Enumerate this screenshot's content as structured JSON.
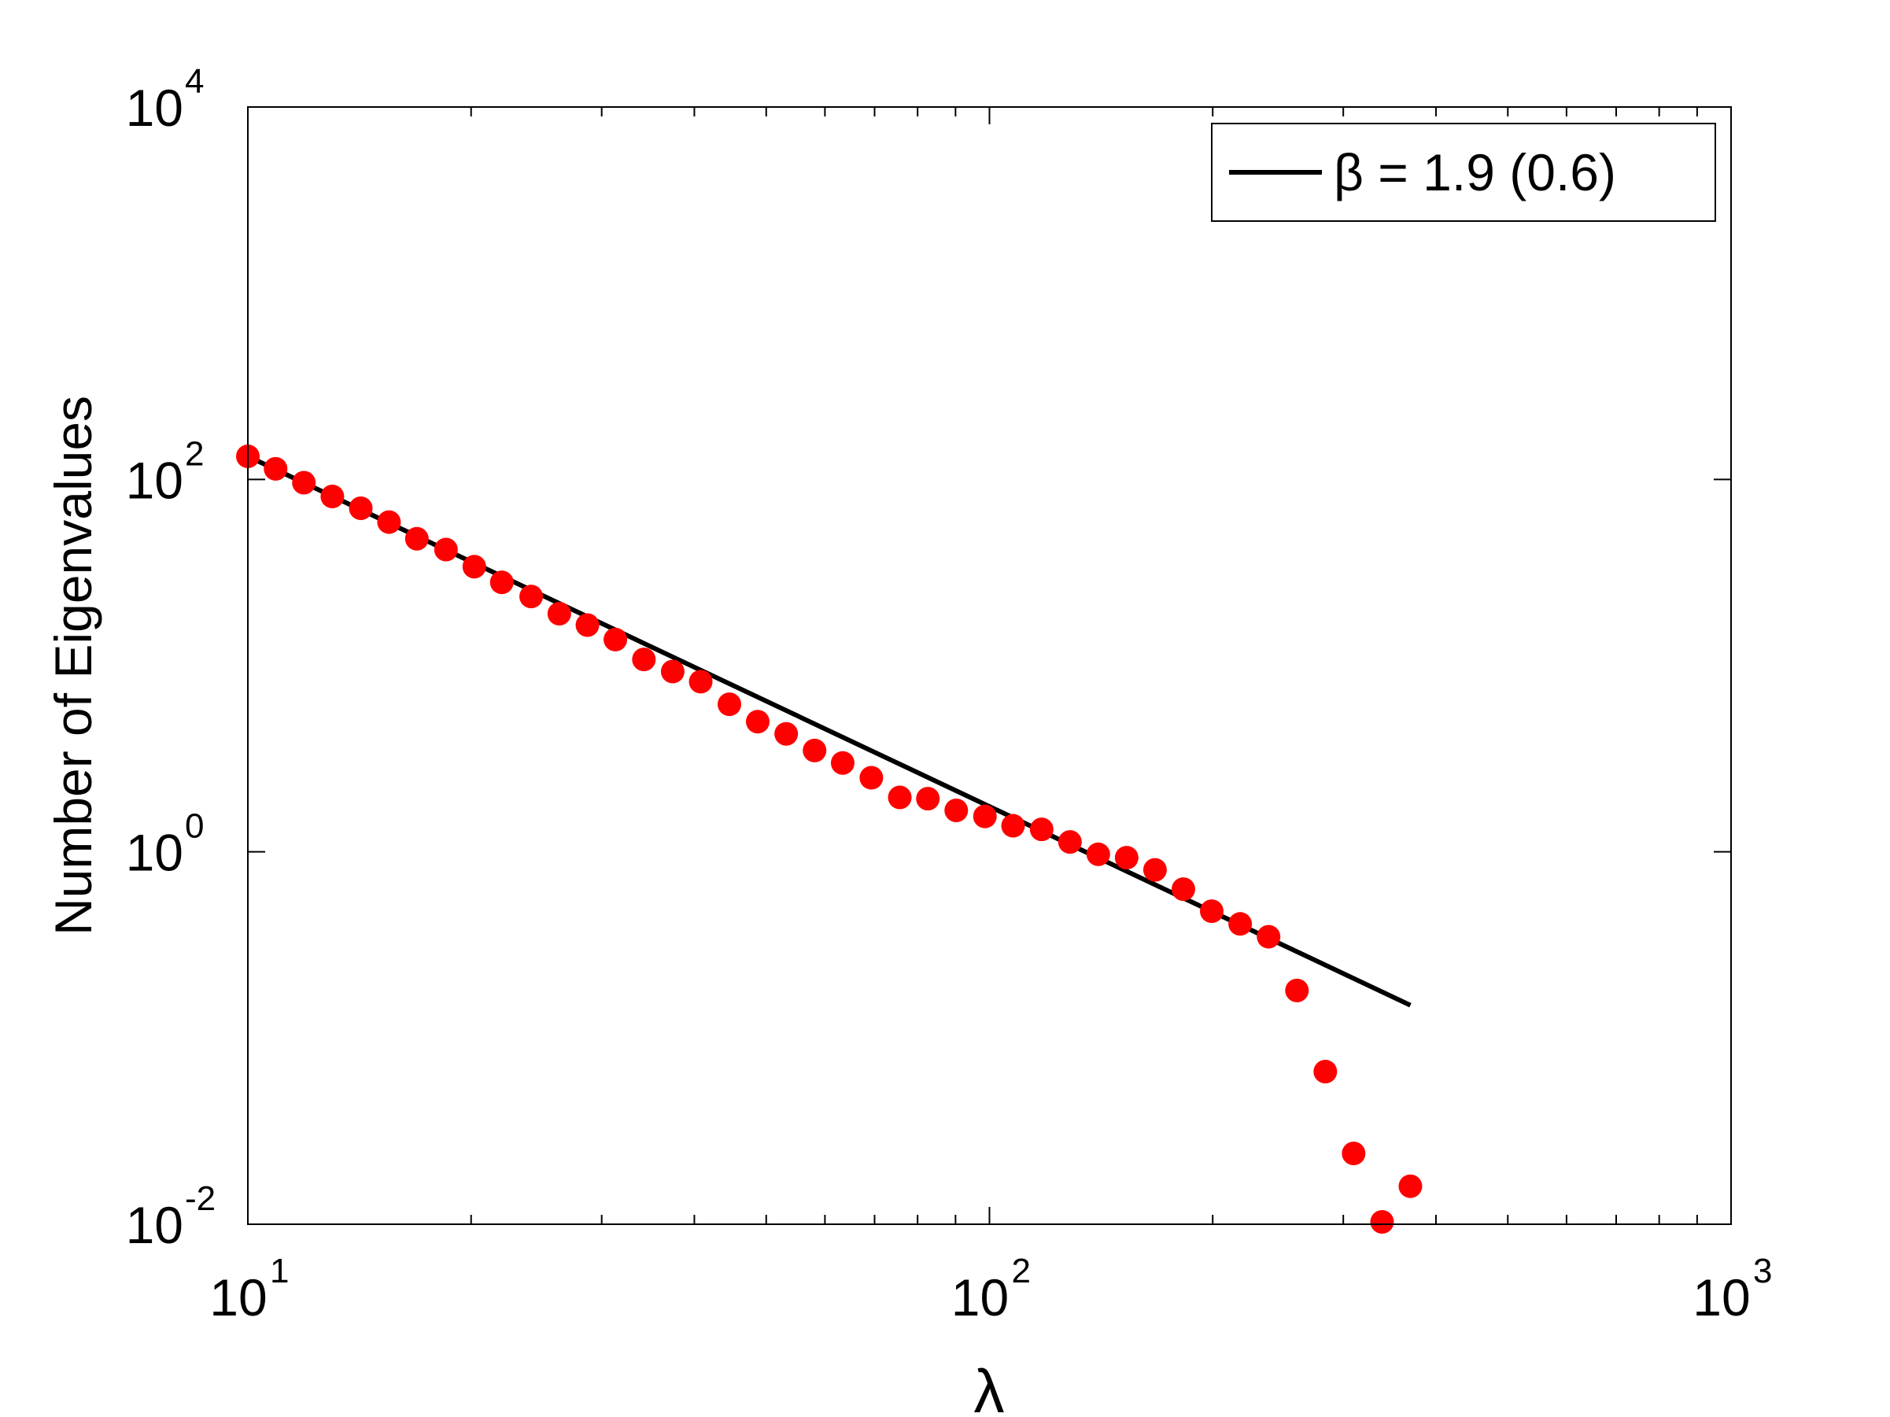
{
  "chart_data": {
    "type": "scatter",
    "title": "",
    "xlabel": "λ",
    "ylabel": "Number of Eigenvalues",
    "xscale": "log",
    "yscale": "log",
    "xlim": [
      10,
      1000
    ],
    "ylim": [
      0.01,
      10000
    ],
    "grid": false,
    "legend_position": "top-right",
    "x_ticks": [
      {
        "value": 10,
        "base": "10",
        "exp": "1"
      },
      {
        "value": 100,
        "base": "10",
        "exp": "2"
      },
      {
        "value": 1000,
        "base": "10",
        "exp": "3"
      }
    ],
    "y_ticks": [
      {
        "value": 0.01,
        "base": "10",
        "exp": "-2"
      },
      {
        "value": 1,
        "base": "10",
        "exp": "0"
      },
      {
        "value": 100,
        "base": "10",
        "exp": "2"
      },
      {
        "value": 10000,
        "base": "10",
        "exp": "4"
      }
    ],
    "series": [
      {
        "name": "",
        "kind": "scatter",
        "color": "#ff0000",
        "x": [
          10.0,
          10.9,
          11.9,
          13.0,
          14.2,
          15.5,
          16.9,
          18.5,
          20.2,
          22.0,
          24.1,
          26.3,
          28.7,
          31.3,
          34.2,
          37.4,
          40.8,
          44.6,
          48.7,
          53.2,
          58.1,
          63.4,
          69.3,
          75.7,
          82.6,
          90.2,
          98.6,
          107.6,
          117.6,
          128.4,
          140.2,
          153.1,
          167.2,
          182.6,
          199.4,
          217.8,
          237.9,
          259.8,
          283.7,
          309.8,
          338.4,
          369.5
        ],
        "y": [
          133,
          114,
          96,
          81,
          70,
          59,
          48,
          42,
          34,
          28,
          23.5,
          19,
          16.5,
          13.8,
          10.8,
          9.3,
          8.2,
          6.2,
          5.0,
          4.3,
          3.5,
          3.0,
          2.5,
          1.96,
          1.93,
          1.67,
          1.55,
          1.38,
          1.32,
          1.13,
          0.97,
          0.93,
          0.8,
          0.63,
          0.48,
          0.41,
          0.35,
          0.18,
          0.066,
          0.024,
          0.0103,
          0.016
        ]
      },
      {
        "name": "β = 1.9 (0.6)",
        "kind": "line",
        "color": "#000000",
        "x": [
          10.0,
          369.5
        ],
        "y": [
          133,
          0.15
        ]
      }
    ]
  }
}
